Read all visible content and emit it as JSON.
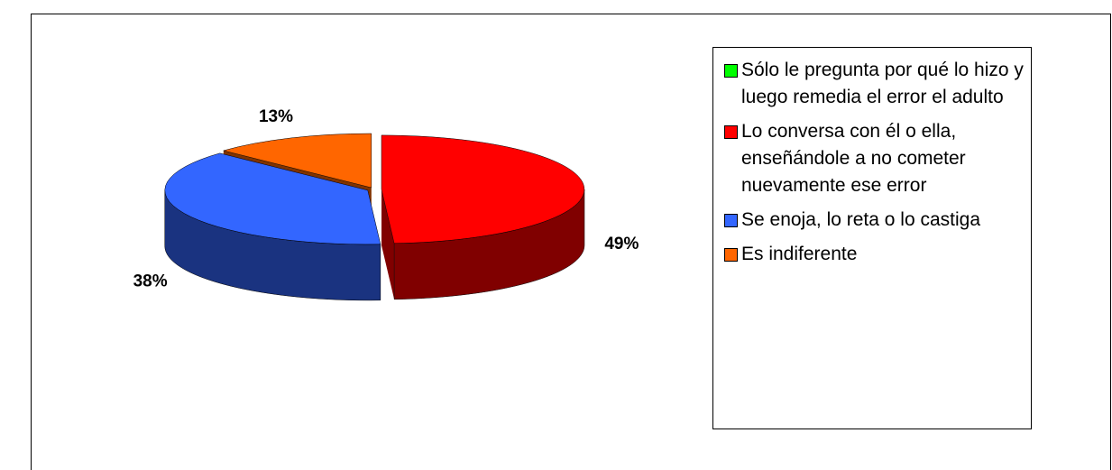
{
  "chart_data": {
    "type": "pie",
    "categories": [
      "Sólo le pregunta por qué lo hizo y luego remedia el error el adulto",
      "Lo conversa con él o ella, enseñándole a no cometer nuevamente ese error",
      "Se enoja, lo reta o lo castiga",
      "Es indiferente"
    ],
    "values": [
      0,
      49,
      38,
      13
    ],
    "value_labels": [
      null,
      "49%",
      "38%",
      "13%"
    ],
    "colors": [
      "#00ff00",
      "#ff0000",
      "#3366ff",
      "#ff6600"
    ],
    "side_colors": [
      "#008000",
      "#800000",
      "#1a3380",
      "#803300"
    ],
    "legend": "right"
  }
}
